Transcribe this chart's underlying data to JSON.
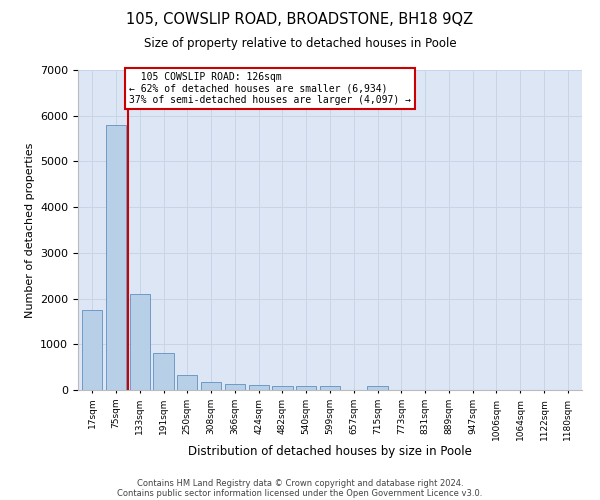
{
  "title": "105, COWSLIP ROAD, BROADSTONE, BH18 9QZ",
  "subtitle": "Size of property relative to detached houses in Poole",
  "xlabel": "Distribution of detached houses by size in Poole",
  "ylabel": "Number of detached properties",
  "bar_color": "#b8cfe8",
  "bar_edge_color": "#6090c0",
  "grid_color": "#c8d4e8",
  "background_color": "#dce6f5",
  "annotation_box_color": "#cc0000",
  "vline_color": "#cc0000",
  "property_label": "105 COWSLIP ROAD: 126sqm",
  "smaller_pct": "62%",
  "smaller_count": "6,934",
  "larger_pct": "37%",
  "larger_count": "4,097",
  "categories": [
    "17sqm",
    "75sqm",
    "133sqm",
    "191sqm",
    "250sqm",
    "308sqm",
    "366sqm",
    "424sqm",
    "482sqm",
    "540sqm",
    "599sqm",
    "657sqm",
    "715sqm",
    "773sqm",
    "831sqm",
    "889sqm",
    "947sqm",
    "1006sqm",
    "1064sqm",
    "1122sqm",
    "1180sqm"
  ],
  "bar_values": [
    1750,
    5800,
    2100,
    800,
    330,
    180,
    130,
    100,
    90,
    80,
    80,
    0,
    80,
    0,
    0,
    0,
    0,
    0,
    0,
    0,
    0
  ],
  "ylim": [
    0,
    7000
  ],
  "yticks": [
    0,
    1000,
    2000,
    3000,
    4000,
    5000,
    6000,
    7000
  ],
  "vline_x_index": 1.5,
  "footer1": "Contains HM Land Registry data © Crown copyright and database right 2024.",
  "footer2": "Contains public sector information licensed under the Open Government Licence v3.0."
}
